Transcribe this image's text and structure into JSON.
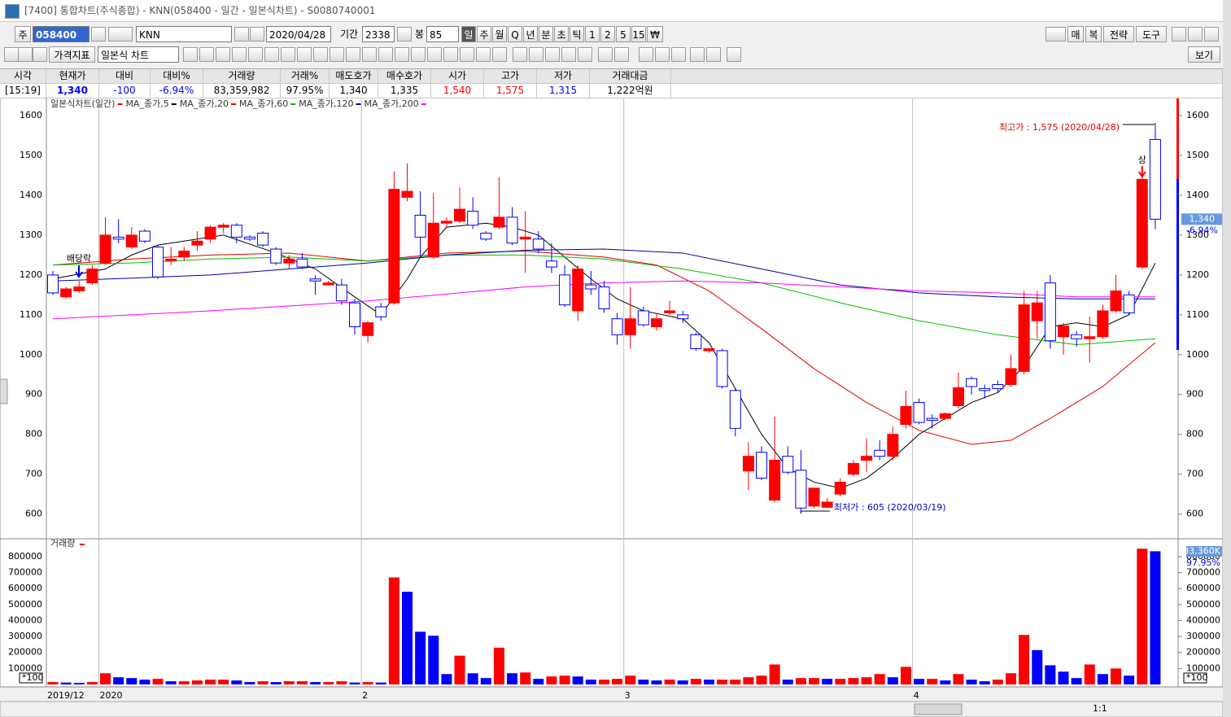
{
  "window_title": "[7400] 통합차트(주식종합) - KNN(058400 - 일간 - 일본식차트) - S0080740001",
  "toolbar": {
    "code_prefix": "주",
    "code": "058400",
    "name": "KNN",
    "date": "2020/04/28",
    "period_label": "기간",
    "period": "2338",
    "count_label": "봉",
    "count": "85",
    "periods": [
      "일",
      "주",
      "월",
      "Q",
      "년",
      "분",
      "초",
      "틱",
      "1",
      "2",
      "5",
      "15",
      "₩"
    ],
    "right_buttons": [
      "매",
      "복",
      "전략",
      "도구"
    ],
    "indicator_button": "가격지표",
    "chart_style": "일본식 차트",
    "view_button": "보기",
    "zoom": "1:1"
  },
  "quote": {
    "headers": [
      "시각",
      "현재가",
      "대비",
      "대비%",
      "거래량",
      "거래%",
      "매도호가",
      "매수호가",
      "시가",
      "고가",
      "저가",
      "거래대금"
    ],
    "values": [
      "[15:19]",
      "1,340",
      "-100",
      "-6.94%",
      "83,359,982",
      "97.95%",
      "1,340",
      "1,335",
      "1,540",
      "1,575",
      "1,315",
      "1,222억원"
    ]
  },
  "chart_data": [
    {
      "type": "candlestick",
      "title": "일본식차트(일간)",
      "up_color": "#ff0000",
      "down_color": "#0000ff",
      "open": [
        1200,
        1145,
        1160,
        1180,
        1230,
        1295,
        1270,
        1310,
        1270,
        1235,
        1245,
        1275,
        1290,
        1320,
        1325,
        1295,
        1305,
        1265,
        1230,
        1240,
        1190,
        1175,
        1175,
        1130,
        1048,
        1120,
        1130,
        1395,
        1350,
        1245,
        1330,
        1335,
        1360,
        1305,
        1320,
        1345,
        1290,
        1290,
        1235,
        1200,
        1110,
        1175,
        1170,
        1090,
        1050,
        1110,
        1070,
        1105,
        1100,
        1050,
        1010,
        1010,
        910,
        708,
        755,
        635,
        745,
        710,
        620,
        617,
        650,
        700,
        735,
        760,
        745,
        825,
        880,
        840,
        840,
        872,
        940,
        915,
        925,
        925,
        958,
        1085,
        1180,
        1045,
        1050,
        1040,
        1045,
        1110,
        1150,
        1220,
        1540
      ],
      "high": [
        1210,
        1170,
        1185,
        1225,
        1345,
        1340,
        1320,
        1315,
        1275,
        1270,
        1270,
        1310,
        1325,
        1330,
        1330,
        1300,
        1310,
        1270,
        1250,
        1255,
        1200,
        1185,
        1190,
        1140,
        1085,
        1130,
        1460,
        1480,
        1410,
        1405,
        1345,
        1420,
        1395,
        1310,
        1445,
        1370,
        1360,
        1310,
        1280,
        1225,
        1225,
        1210,
        1185,
        1105,
        1170,
        1120,
        1105,
        1135,
        1110,
        1055,
        1015,
        1015,
        915,
        780,
        770,
        845,
        770,
        760,
        665,
        640,
        690,
        735,
        790,
        785,
        820,
        910,
        890,
        850,
        855,
        955,
        945,
        925,
        935,
        1000,
        1160,
        1160,
        1200,
        1080,
        1060,
        1095,
        1125,
        1200,
        1160,
        1445,
        1575
      ],
      "low": [
        1150,
        1140,
        1155,
        1175,
        1225,
        1280,
        1265,
        1280,
        1190,
        1225,
        1235,
        1260,
        1280,
        1305,
        1280,
        1285,
        1270,
        1225,
        1215,
        1215,
        1150,
        1175,
        1125,
        1050,
        1030,
        1085,
        1125,
        1385,
        1245,
        1240,
        1320,
        1330,
        1315,
        1285,
        1315,
        1275,
        1205,
        1255,
        1205,
        1120,
        1085,
        1150,
        1105,
        1025,
        1015,
        1070,
        1060,
        1100,
        1080,
        1010,
        1005,
        915,
        795,
        660,
        685,
        630,
        700,
        605,
        615,
        615,
        645,
        695,
        705,
        735,
        735,
        815,
        825,
        815,
        835,
        865,
        900,
        890,
        905,
        920,
        950,
        1040,
        1015,
        1000,
        1020,
        980,
        1040,
        1105,
        1100,
        1215,
        1315
      ],
      "close": [
        1155,
        1165,
        1170,
        1215,
        1300,
        1290,
        1300,
        1285,
        1195,
        1240,
        1260,
        1285,
        1320,
        1325,
        1295,
        1290,
        1275,
        1230,
        1240,
        1220,
        1185,
        1180,
        1135,
        1070,
        1080,
        1095,
        1415,
        1410,
        1295,
        1330,
        1335,
        1365,
        1325,
        1290,
        1345,
        1280,
        1295,
        1265,
        1220,
        1125,
        1215,
        1165,
        1115,
        1050,
        1090,
        1075,
        1090,
        1110,
        1090,
        1015,
        1015,
        920,
        815,
        745,
        690,
        735,
        705,
        615,
        665,
        630,
        680,
        727,
        745,
        745,
        800,
        870,
        830,
        835,
        852,
        917,
        920,
        910,
        915,
        965,
        1125,
        1130,
        1035,
        1072,
        1040,
        1045,
        1110,
        1160,
        1105,
        1440,
        1340
      ],
      "series": [
        {
          "name": "MA_종가,5",
          "color": "#000000",
          "x": [
            0,
            4,
            6,
            8,
            13,
            17,
            20,
            23,
            25,
            27,
            28,
            30,
            33,
            35,
            37,
            39,
            41,
            43,
            45,
            48,
            50,
            52,
            54,
            56,
            58,
            60,
            62,
            64,
            66,
            68,
            70,
            72,
            74,
            76,
            78,
            80,
            82,
            84
          ],
          "values": [
            1190,
            1215,
            1250,
            1275,
            1300,
            1255,
            1215,
            1145,
            1100,
            1190,
            1245,
            1320,
            1330,
            1320,
            1300,
            1245,
            1190,
            1140,
            1110,
            1090,
            1030,
            915,
            800,
            715,
            680,
            665,
            690,
            740,
            800,
            840,
            880,
            905,
            970,
            1070,
            1080,
            1070,
            1100,
            1230
          ]
        },
        {
          "name": "MA_종가,20",
          "color": "#e00000",
          "x": [
            0,
            6,
            12,
            18,
            24,
            30,
            36,
            42,
            46,
            50,
            54,
            58,
            62,
            66,
            70,
            73,
            76,
            80,
            84
          ],
          "values": [
            1225,
            1240,
            1250,
            1255,
            1235,
            1255,
            1260,
            1245,
            1225,
            1160,
            1065,
            965,
            880,
            810,
            775,
            785,
            840,
            920,
            1030
          ]
        },
        {
          "name": "MA_종가,60",
          "color": "#00c000",
          "x": [
            0,
            6,
            12,
            18,
            24,
            30,
            36,
            42,
            48,
            54,
            60,
            66,
            72,
            78,
            84
          ],
          "values": [
            1225,
            1230,
            1240,
            1245,
            1235,
            1250,
            1250,
            1240,
            1215,
            1180,
            1130,
            1085,
            1050,
            1025,
            1040
          ]
        },
        {
          "name": "MA_종가,120",
          "color": "#0000a0",
          "x": [
            0,
            6,
            12,
            18,
            24,
            30,
            36,
            42,
            48,
            54,
            60,
            66,
            72,
            78,
            84
          ],
          "values": [
            1185,
            1192,
            1200,
            1215,
            1230,
            1250,
            1262,
            1265,
            1255,
            1215,
            1175,
            1155,
            1145,
            1140,
            1140
          ]
        },
        {
          "name": "MA_종가,200",
          "color": "#ff00ff",
          "x": [
            0,
            6,
            12,
            18,
            24,
            30,
            36,
            42,
            48,
            54,
            60,
            66,
            72,
            78,
            84
          ],
          "values": [
            1090,
            1100,
            1110,
            1122,
            1135,
            1152,
            1170,
            1180,
            1185,
            1180,
            1170,
            1160,
            1155,
            1145,
            1145
          ]
        }
      ],
      "ylim": [
        540,
        1645
      ],
      "yticks": [
        600,
        700,
        800,
        900,
        1000,
        1100,
        1200,
        1300,
        1400,
        1500,
        1600
      ],
      "max_label": "최고가 : 1,575 (2020/04/28)",
      "min_label": "최저가 : 605 (2020/03/19)",
      "event_labels": [
        "배당락",
        "상"
      ]
    },
    {
      "type": "bar",
      "title": "거래량",
      "up_color": "#ff0000",
      "down_color": "#0000ff",
      "categories": [
        "2019/12",
        null,
        null,
        null,
        "2020",
        null,
        null,
        null,
        null,
        null,
        null,
        null,
        null,
        null,
        null,
        null,
        null,
        null,
        null,
        null,
        null,
        null,
        null,
        null,
        "2",
        null,
        null,
        null,
        null,
        null,
        null,
        null,
        null,
        null,
        null,
        null,
        null,
        null,
        null,
        null,
        null,
        null,
        null,
        null,
        "3",
        null,
        null,
        null,
        null,
        null,
        null,
        null,
        null,
        null,
        null,
        null,
        null,
        null,
        null,
        null,
        null,
        null,
        null,
        null,
        null,
        null,
        "4",
        null,
        null,
        null,
        null,
        null,
        null,
        null,
        null,
        null,
        null,
        null,
        null,
        null,
        null,
        null,
        null,
        null,
        null
      ],
      "values": [
        15000,
        12000,
        10000,
        15000,
        70000,
        45000,
        40000,
        30000,
        35000,
        20000,
        20000,
        25000,
        30000,
        30000,
        25000,
        15000,
        20000,
        15000,
        20000,
        20000,
        15000,
        15000,
        20000,
        12000,
        15000,
        12000,
        670000,
        580000,
        330000,
        305000,
        65000,
        180000,
        70000,
        40000,
        230000,
        70000,
        75000,
        35000,
        50000,
        55000,
        50000,
        30000,
        30000,
        35000,
        55000,
        30000,
        25000,
        30000,
        25000,
        35000,
        30000,
        30000,
        30000,
        45000,
        55000,
        125000,
        30000,
        40000,
        40000,
        35000,
        35000,
        40000,
        45000,
        65000,
        45000,
        110000,
        35000,
        35000,
        25000,
        65000,
        30000,
        20000,
        30000,
        70000,
        310000,
        215000,
        120000,
        80000,
        40000,
        125000,
        65000,
        100000,
        55000,
        850000,
        833600
      ],
      "ylim": [
        0,
        912000
      ],
      "yticks": [
        100000,
        200000,
        300000,
        400000,
        500000,
        600000,
        700000,
        800000
      ],
      "unit_label": "*100",
      "last_label": "83,360K"
    }
  ]
}
